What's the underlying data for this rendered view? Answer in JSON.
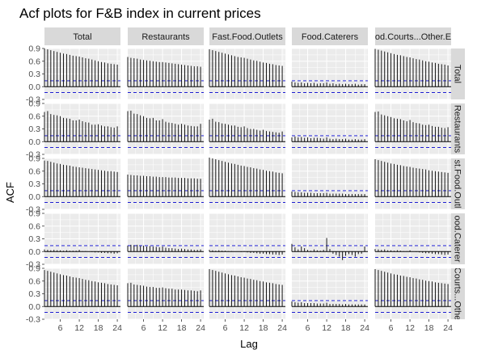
{
  "chart_data": {
    "type": "bar",
    "title": "Acf plots for F&B index in current prices",
    "xlabel": "Lag",
    "ylabel": "ACF",
    "columns": [
      "Total",
      "Restaurants",
      "Fast.Food.Outlets",
      "Food.Caterers",
      "Food.Courts...Other.Eating.Places"
    ],
    "column_strip_labels": [
      "Total",
      "Restaurants",
      "Fast.Food.Outlets",
      "Food.Caterers",
      "od.Courts...Other.E"
    ],
    "rows": [
      "Total",
      "Restaurants",
      "Fast.Food.Outlets",
      "Food.Caterers",
      "Food.Courts...Other.Eating.Places"
    ],
    "row_strip_labels": [
      "Total",
      "Restaurants",
      "st.Food.Outl",
      "ood.Caterer",
      "Courts...Othe"
    ],
    "yticks": [
      "-0.3",
      "0.0",
      "0.3",
      "0.6",
      "0.9"
    ],
    "ytick_values": [
      -0.3,
      0.0,
      0.3,
      0.6,
      0.9
    ],
    "xticks": [
      "6",
      "12",
      "18",
      "24"
    ],
    "xtick_values": [
      6,
      12,
      18,
      24
    ],
    "xlim": [
      1,
      25
    ],
    "ylim": [
      -0.3,
      0.9
    ],
    "confidence_bound": 0.14,
    "lags": [
      1,
      2,
      3,
      4,
      5,
      6,
      7,
      8,
      9,
      10,
      11,
      12,
      13,
      14,
      15,
      16,
      17,
      18,
      19,
      20,
      21,
      22,
      23,
      24
    ],
    "colors": {
      "panel": "#ebebeb",
      "strip": "#d9d9d9",
      "grid_major": "#ffffff",
      "bar": "#000000",
      "bound": "#0000cc"
    },
    "grid": true,
    "panels": [
      [
        {
          "values": [
            0.9,
            0.88,
            0.86,
            0.84,
            0.82,
            0.8,
            0.78,
            0.77,
            0.75,
            0.73,
            0.72,
            0.71,
            0.69,
            0.67,
            0.66,
            0.64,
            0.62,
            0.6,
            0.58,
            0.57,
            0.55,
            0.54,
            0.53,
            0.52
          ]
        },
        {
          "values": [
            0.7,
            0.68,
            0.67,
            0.66,
            0.64,
            0.63,
            0.62,
            0.61,
            0.6,
            0.59,
            0.58,
            0.58,
            0.57,
            0.56,
            0.55,
            0.54,
            0.53,
            0.52,
            0.51,
            0.5,
            0.49,
            0.48,
            0.48,
            0.47
          ]
        },
        {
          "values": [
            0.88,
            0.86,
            0.84,
            0.82,
            0.8,
            0.78,
            0.76,
            0.74,
            0.72,
            0.7,
            0.69,
            0.68,
            0.66,
            0.64,
            0.62,
            0.61,
            0.59,
            0.57,
            0.56,
            0.54,
            0.53,
            0.51,
            0.5,
            0.49
          ]
        },
        {
          "values": [
            0.12,
            0.1,
            0.09,
            0.1,
            0.08,
            0.09,
            0.08,
            0.09,
            0.07,
            0.08,
            0.08,
            0.1,
            0.07,
            0.08,
            0.06,
            0.07,
            0.06,
            0.07,
            0.06,
            0.06,
            0.07,
            0.05,
            0.06,
            0.06
          ]
        },
        {
          "values": [
            0.89,
            0.87,
            0.85,
            0.83,
            0.81,
            0.79,
            0.77,
            0.75,
            0.74,
            0.72,
            0.7,
            0.69,
            0.67,
            0.65,
            0.64,
            0.62,
            0.6,
            0.59,
            0.57,
            0.56,
            0.54,
            0.53,
            0.52,
            0.5
          ]
        }
      ],
      [
        {
          "values": [
            0.7,
            0.72,
            0.65,
            0.63,
            0.62,
            0.6,
            0.56,
            0.55,
            0.54,
            0.5,
            0.5,
            0.52,
            0.48,
            0.46,
            0.45,
            0.4,
            0.4,
            0.41,
            0.38,
            0.36,
            0.36,
            0.34,
            0.33,
            0.36
          ]
        },
        {
          "values": [
            0.72,
            0.73,
            0.66,
            0.65,
            0.62,
            0.6,
            0.56,
            0.55,
            0.56,
            0.5,
            0.5,
            0.53,
            0.47,
            0.45,
            0.44,
            0.42,
            0.4,
            0.42,
            0.4,
            0.38,
            0.37,
            0.36,
            0.36,
            0.42
          ]
        },
        {
          "values": [
            0.52,
            0.54,
            0.47,
            0.46,
            0.43,
            0.42,
            0.4,
            0.38,
            0.38,
            0.35,
            0.34,
            0.36,
            0.32,
            0.3,
            0.3,
            0.28,
            0.26,
            0.28,
            0.25,
            0.24,
            0.23,
            0.22,
            0.21,
            0.24
          ]
        },
        {
          "values": [
            0.1,
            0.12,
            0.1,
            0.11,
            0.09,
            0.1,
            0.08,
            0.09,
            0.09,
            0.08,
            0.07,
            0.1,
            0.07,
            0.06,
            0.07,
            0.06,
            0.06,
            0.07,
            0.05,
            0.05,
            0.06,
            0.05,
            0.05,
            0.06
          ]
        },
        {
          "values": [
            0.7,
            0.71,
            0.64,
            0.62,
            0.6,
            0.58,
            0.55,
            0.54,
            0.53,
            0.5,
            0.48,
            0.51,
            0.46,
            0.44,
            0.43,
            0.4,
            0.39,
            0.4,
            0.37,
            0.35,
            0.35,
            0.33,
            0.32,
            0.34
          ]
        }
      ],
      [
        {
          "values": [
            0.85,
            0.84,
            0.82,
            0.8,
            0.78,
            0.77,
            0.75,
            0.74,
            0.73,
            0.71,
            0.7,
            0.69,
            0.68,
            0.67,
            0.66,
            0.65,
            0.64,
            0.63,
            0.62,
            0.61,
            0.6,
            0.6,
            0.59,
            0.58
          ]
        },
        {
          "values": [
            0.52,
            0.51,
            0.5,
            0.5,
            0.49,
            0.49,
            0.48,
            0.48,
            0.47,
            0.47,
            0.46,
            0.46,
            0.46,
            0.45,
            0.45,
            0.45,
            0.44,
            0.44,
            0.44,
            0.43,
            0.43,
            0.43,
            0.42,
            0.42
          ]
        },
        {
          "values": [
            0.92,
            0.9,
            0.88,
            0.86,
            0.84,
            0.82,
            0.8,
            0.78,
            0.77,
            0.75,
            0.73,
            0.72,
            0.7,
            0.69,
            0.67,
            0.66,
            0.64,
            0.63,
            0.61,
            0.6,
            0.59,
            0.57,
            0.56,
            0.55
          ]
        },
        {
          "values": [
            0.12,
            0.11,
            0.1,
            0.1,
            0.09,
            0.09,
            0.09,
            0.08,
            0.08,
            0.08,
            0.08,
            0.09,
            0.07,
            0.07,
            0.07,
            0.07,
            0.07,
            0.06,
            0.06,
            0.06,
            0.06,
            0.06,
            0.06,
            0.06
          ]
        },
        {
          "values": [
            0.88,
            0.86,
            0.84,
            0.82,
            0.8,
            0.78,
            0.77,
            0.75,
            0.74,
            0.72,
            0.71,
            0.7,
            0.68,
            0.67,
            0.66,
            0.65,
            0.64,
            0.62,
            0.61,
            0.6,
            0.59,
            0.58,
            0.57,
            0.56
          ]
        }
      ],
      [
        {
          "values": [
            0.05,
            0.04,
            0.03,
            0.04,
            0.03,
            0.03,
            0.02,
            0.03,
            0.02,
            0.02,
            0.02,
            0.04,
            0.01,
            0.01,
            0.0,
            -0.01,
            -0.02,
            -0.02,
            -0.03,
            -0.03,
            -0.04,
            -0.04,
            -0.05,
            -0.04
          ]
        },
        {
          "values": [
            0.14,
            0.16,
            0.15,
            0.16,
            0.13,
            0.14,
            0.12,
            0.13,
            0.12,
            0.11,
            0.1,
            0.12,
            0.09,
            0.08,
            0.08,
            0.07,
            0.06,
            0.07,
            0.06,
            0.05,
            0.05,
            0.04,
            0.04,
            0.05
          ]
        },
        {
          "values": [
            0.04,
            0.03,
            0.02,
            0.03,
            0.02,
            0.02,
            0.01,
            0.01,
            0.0,
            0.0,
            -0.01,
            0.01,
            -0.02,
            -0.03,
            -0.03,
            -0.04,
            -0.05,
            -0.05,
            -0.06,
            -0.06,
            -0.07,
            -0.07,
            -0.08,
            -0.07
          ]
        },
        {
          "values": [
            0.18,
            0.1,
            0.05,
            0.12,
            0.08,
            0.04,
            0.02,
            0.05,
            0.03,
            0.02,
            0.04,
            0.32,
            0.06,
            -0.05,
            -0.08,
            -0.12,
            -0.2,
            -0.1,
            -0.06,
            -0.08,
            -0.12,
            -0.06,
            -0.05,
            0.12
          ]
        },
        {
          "values": [
            0.06,
            0.05,
            0.04,
            0.05,
            0.03,
            0.03,
            0.02,
            0.03,
            0.02,
            0.01,
            0.01,
            0.03,
            0.0,
            -0.01,
            -0.02,
            -0.03,
            -0.04,
            -0.04,
            -0.05,
            -0.06,
            -0.06,
            -0.07,
            -0.08,
            -0.07
          ]
        }
      ],
      [
        {
          "values": [
            0.86,
            0.84,
            0.82,
            0.8,
            0.78,
            0.76,
            0.74,
            0.73,
            0.71,
            0.69,
            0.68,
            0.67,
            0.65,
            0.63,
            0.62,
            0.6,
            0.59,
            0.57,
            0.56,
            0.55,
            0.53,
            0.52,
            0.51,
            0.5
          ]
        },
        {
          "values": [
            0.55,
            0.56,
            0.52,
            0.51,
            0.5,
            0.49,
            0.47,
            0.46,
            0.46,
            0.44,
            0.44,
            0.45,
            0.43,
            0.42,
            0.42,
            0.4,
            0.4,
            0.4,
            0.39,
            0.38,
            0.38,
            0.37,
            0.36,
            0.38
          ]
        },
        {
          "values": [
            0.88,
            0.86,
            0.84,
            0.82,
            0.8,
            0.78,
            0.76,
            0.74,
            0.73,
            0.71,
            0.69,
            0.68,
            0.66,
            0.65,
            0.63,
            0.62,
            0.6,
            0.59,
            0.57,
            0.56,
            0.55,
            0.53,
            0.52,
            0.51
          ]
        },
        {
          "values": [
            0.12,
            0.1,
            0.09,
            0.1,
            0.08,
            0.08,
            0.08,
            0.08,
            0.07,
            0.07,
            0.07,
            0.09,
            0.06,
            0.06,
            0.06,
            0.06,
            0.05,
            0.06,
            0.05,
            0.05,
            0.05,
            0.05,
            0.05,
            0.05
          ]
        },
        {
          "values": [
            0.88,
            0.86,
            0.84,
            0.82,
            0.8,
            0.78,
            0.76,
            0.75,
            0.73,
            0.72,
            0.7,
            0.69,
            0.67,
            0.66,
            0.64,
            0.63,
            0.61,
            0.6,
            0.59,
            0.57,
            0.56,
            0.55,
            0.54,
            0.53
          ]
        }
      ]
    ]
  }
}
